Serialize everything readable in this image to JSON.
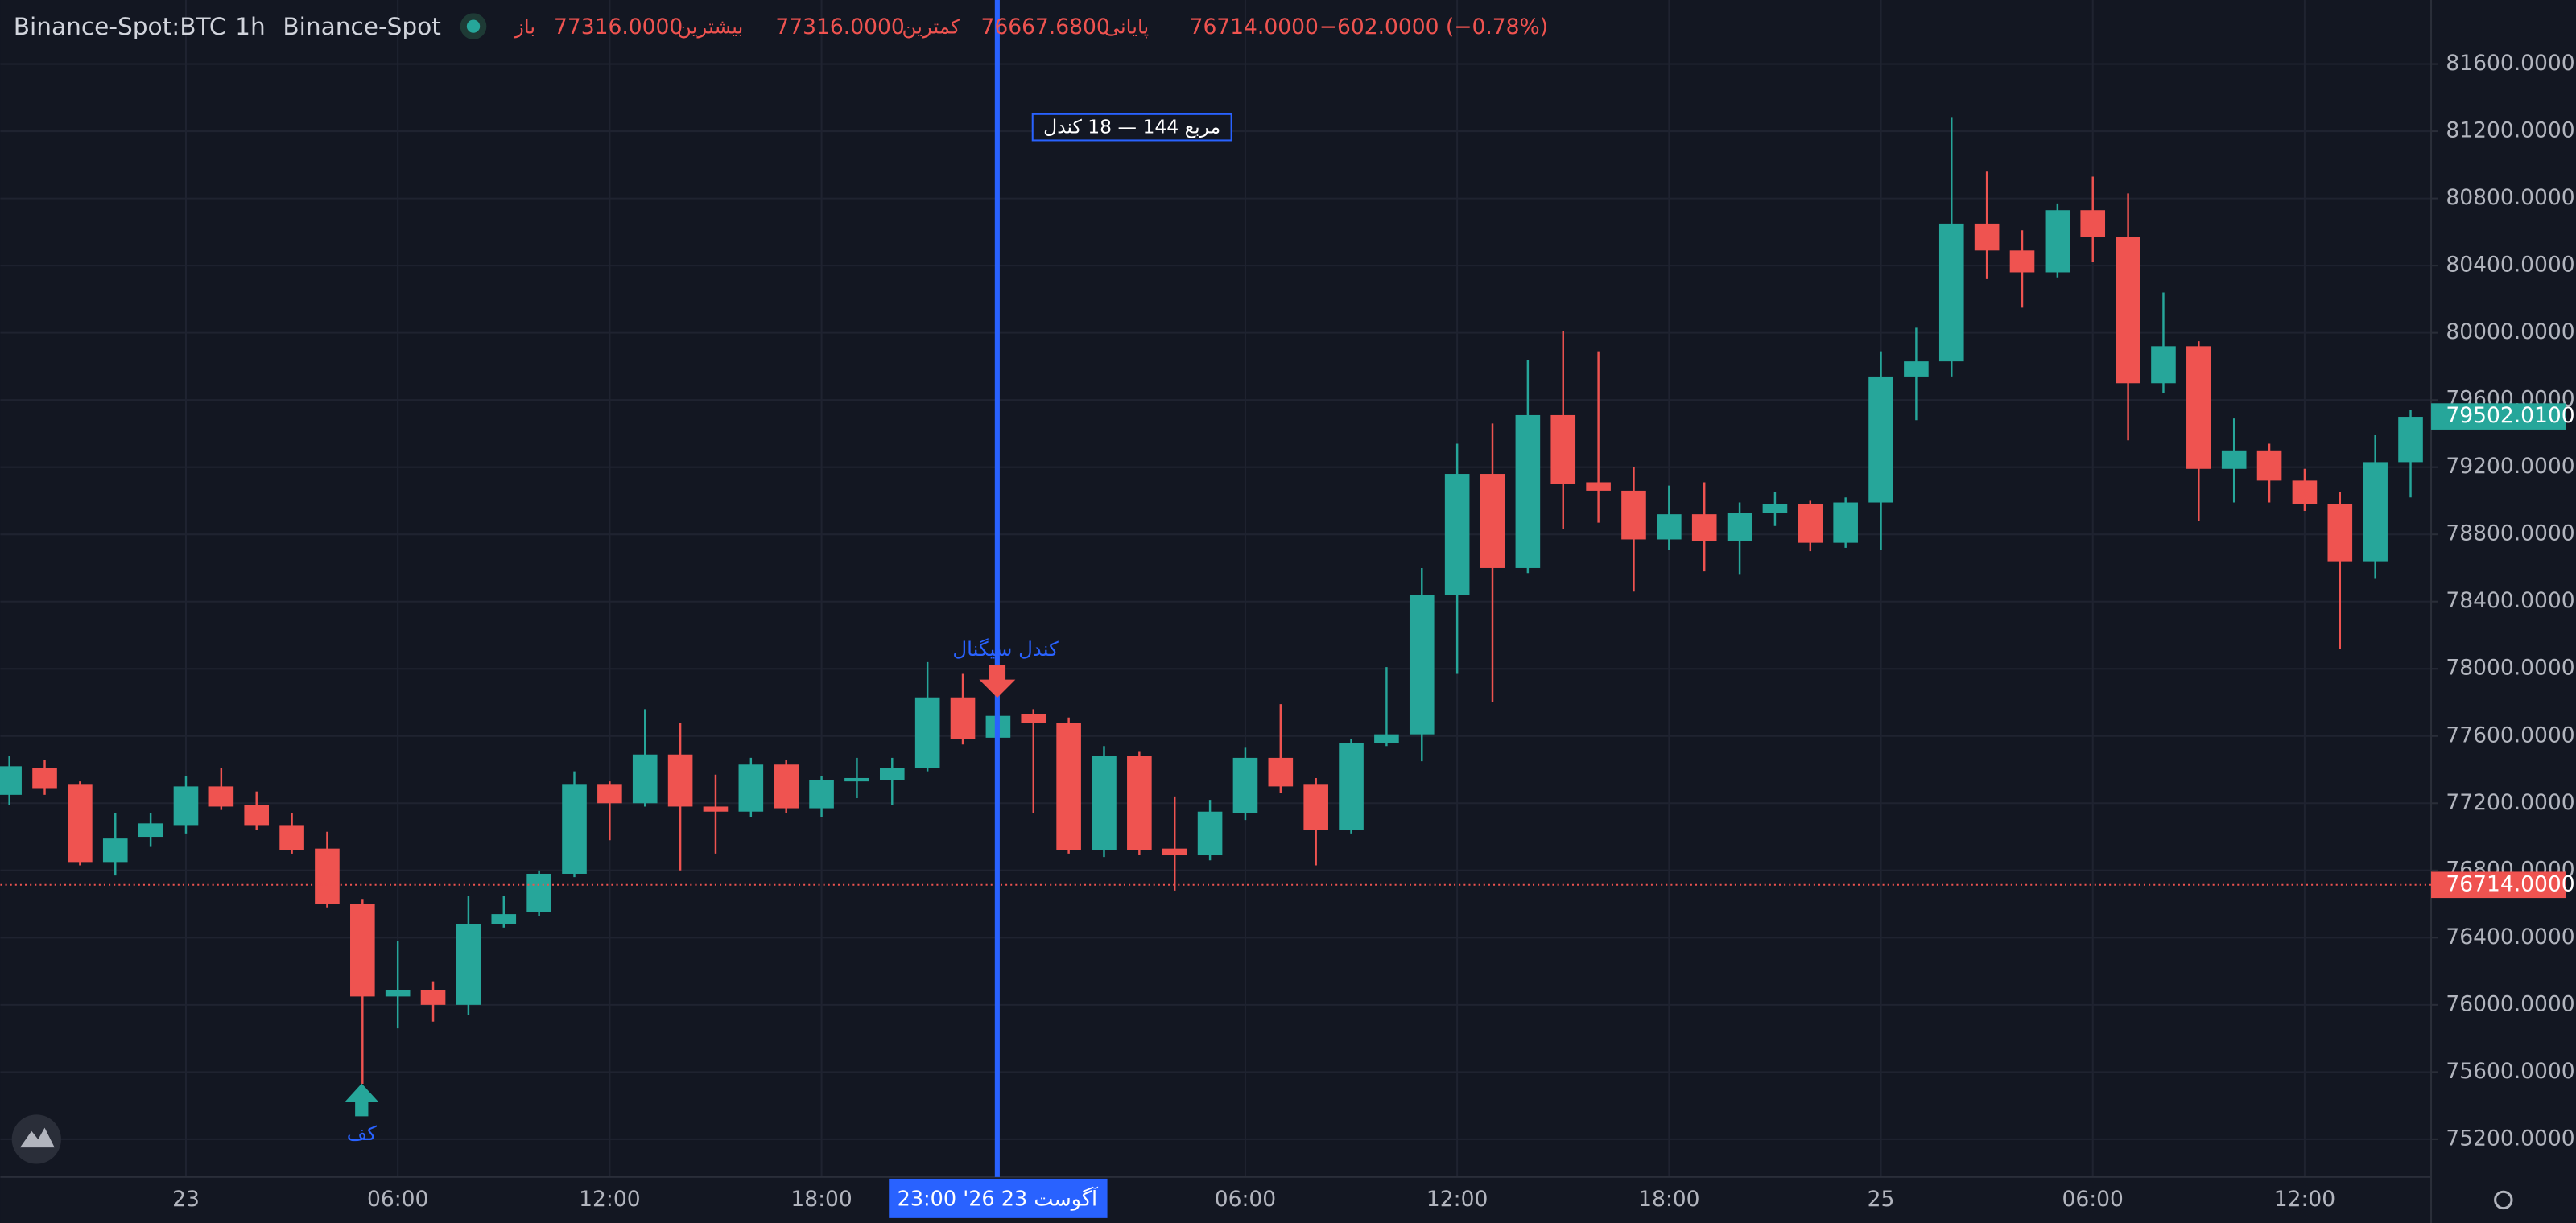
{
  "chart_data": {
    "type": "candlestick",
    "header": {
      "symbol": "Binance-Spot:BTC",
      "interval": "1h",
      "exchange": "Binance-Spot",
      "open_label": "باز",
      "open": "77316.0000",
      "high_label": "بیشترین",
      "high": "77316.0000",
      "low_label": "کمترین",
      "low": "76667.6800",
      "close_label": "پایانی",
      "close": "76714.0000",
      "change": "−602.0000 (−0.78%)"
    },
    "categories": [
      null,
      null,
      null,
      null,
      null,
      "23",
      null,
      null,
      null,
      null,
      null,
      "06:00",
      null,
      null,
      null,
      null,
      null,
      "12:00",
      null,
      null,
      null,
      null,
      null,
      "18:00",
      null,
      null,
      null,
      null,
      null,
      null,
      null,
      null,
      null,
      null,
      null,
      "06:00",
      null,
      null,
      null,
      null,
      null,
      "12:00",
      null,
      null,
      null,
      null,
      null,
      "18:00",
      null,
      null,
      null,
      null,
      null,
      "25",
      null,
      null,
      null,
      null,
      null,
      "06:00",
      null,
      null,
      null,
      null,
      null,
      "12:00",
      null,
      null,
      null
    ],
    "crosshair_label": "23:00  '26 آگوست 23",
    "open": [
      77250,
      77410,
      77310,
      76850,
      77000,
      77070,
      77300,
      77190,
      77070,
      76930,
      76600,
      76050,
      76090,
      76000,
      76480,
      76550,
      76780,
      77310,
      77200,
      77490,
      77180,
      77150,
      77430,
      77170,
      77330,
      77340,
      77410,
      77830,
      77590,
      77730,
      77680,
      76920,
      77480,
      76930,
      76890,
      77140,
      77470,
      77310,
      77040,
      77560,
      77610,
      78440,
      79160,
      78600,
      79510,
      79110,
      79060,
      78770,
      78920,
      78760,
      78930,
      78980,
      78750,
      78990,
      79740,
      79830,
      80650,
      80490,
      80360,
      80730,
      80570,
      79700,
      79920,
      79190,
      79300,
      79120,
      78980,
      78640,
      79230
    ],
    "high": [
      77480,
      77460,
      77330,
      77140,
      77140,
      77360,
      77410,
      77270,
      77140,
      77030,
      76630,
      76380,
      76140,
      76650,
      76650,
      76800,
      77390,
      77330,
      77760,
      77680,
      77370,
      77470,
      77460,
      77360,
      77470,
      77470,
      78040,
      77970,
      77780,
      77760,
      77710,
      77540,
      77510,
      77240,
      77220,
      77530,
      77790,
      77350,
      77580,
      78010,
      78600,
      79340,
      79460,
      79840,
      80010,
      79890,
      79200,
      79090,
      79110,
      78990,
      79050,
      79000,
      79020,
      79890,
      80030,
      81280,
      80960,
      80610,
      80770,
      80930,
      80830,
      80240,
      79950,
      79490,
      79340,
      79190,
      79050,
      79390,
      79540
    ],
    "low": [
      77190,
      77250,
      76830,
      76770,
      76940,
      77020,
      77160,
      77040,
      76900,
      76580,
      75530,
      75860,
      75900,
      75940,
      76460,
      76530,
      76760,
      76980,
      77180,
      76800,
      76900,
      77120,
      77140,
      77120,
      77230,
      77190,
      77390,
      77550,
      77490,
      77140,
      76900,
      76880,
      76890,
      76680,
      76860,
      77100,
      77260,
      76830,
      77020,
      77540,
      77450,
      77970,
      77800,
      78570,
      78830,
      78870,
      78460,
      78710,
      78580,
      78560,
      78850,
      78700,
      78720,
      78710,
      79480,
      79740,
      80320,
      80150,
      80330,
      80420,
      79360,
      79640,
      78880,
      78990,
      78990,
      78940,
      78120,
      78540,
      79020
    ],
    "close": [
      77420,
      77290,
      76850,
      76990,
      77080,
      77300,
      77180,
      77070,
      76920,
      76600,
      76050,
      76090,
      76000,
      76480,
      76540,
      76780,
      77310,
      77200,
      77490,
      77180,
      77150,
      77430,
      77170,
      77340,
      77350,
      77410,
      77830,
      77580,
      77720,
      77680,
      76920,
      77480,
      76920,
      76890,
      77150,
      77470,
      77300,
      77040,
      77560,
      77610,
      78440,
      79160,
      78600,
      79510,
      79100,
      79060,
      78770,
      78920,
      78760,
      78930,
      78980,
      78750,
      78990,
      79740,
      79830,
      80650,
      80490,
      80360,
      80730,
      80570,
      79700,
      79920,
      79190,
      79300,
      79120,
      78980,
      78640,
      79230,
      79500
    ],
    "up_color": "#26a69a",
    "down_color": "#ef5350",
    "ylim": [
      74975,
      81981
    ],
    "yticks": [
      {
        "value": 75200,
        "label": "75200.0000"
      },
      {
        "value": 75600,
        "label": "75600.0000"
      },
      {
        "value": 76000,
        "label": "76000.0000"
      },
      {
        "value": 76400,
        "label": "76400.0000"
      },
      {
        "value": 76800,
        "label": "76800.0000"
      },
      {
        "value": 77200,
        "label": "77200.0000"
      },
      {
        "value": 77600,
        "label": "77600.0000"
      },
      {
        "value": 78000,
        "label": "78000.0000"
      },
      {
        "value": 78400,
        "label": "78400.0000"
      },
      {
        "value": 78800,
        "label": "78800.0000"
      },
      {
        "value": 79200,
        "label": "79200.0000"
      },
      {
        "value": 79600,
        "label": "79600.0000"
      },
      {
        "value": 80000,
        "label": "80000.0000"
      },
      {
        "value": 80400,
        "label": "80400.0000"
      },
      {
        "value": 80800,
        "label": "80800.0000"
      },
      {
        "value": 81200,
        "label": "81200.0000"
      },
      {
        "value": 81600,
        "label": "81600.0000"
      }
    ],
    "grid": true,
    "last_price": {
      "value": 79502.01,
      "label": "79502.0100"
    },
    "current_price": {
      "value": 76714,
      "label": "76714.0000"
    },
    "annotations": {
      "box": "مربع 144 — 18 کندل",
      "signal": "کندل سیگنال",
      "bottom": "کف"
    }
  }
}
